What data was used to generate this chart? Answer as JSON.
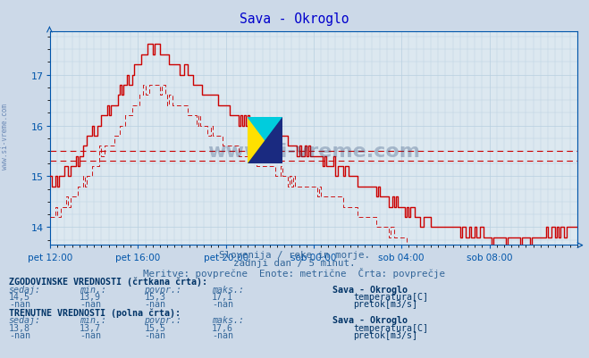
{
  "title": "Sava - Okroglo",
  "bg_color": "#ccd9e8",
  "plot_bg_color": "#dce8f0",
  "grid_color": "#b8cfe0",
  "title_color": "#0000cc",
  "axis_label_color": "#0055aa",
  "text_color": "#336699",
  "bold_text_color": "#003366",
  "line_color": "#cc0000",
  "hline_val1": 15.3,
  "hline_val2": 15.5,
  "ylim": [
    13.65,
    17.85
  ],
  "yticks": [
    14,
    15,
    16,
    17
  ],
  "xtick_labels": [
    "pet 12:00",
    "pet 16:00",
    "pet 20:00",
    "sob 00:00",
    "sob 04:00",
    "sob 08:00"
  ],
  "xtick_positions": [
    0,
    48,
    96,
    144,
    192,
    240
  ],
  "total_points": 289,
  "subtitle1": "Slovenija / reke in morje.",
  "subtitle2": "zadnji dan / 5 minut.",
  "subtitle3": "Meritve: povprečne  Enote: metrične  Črta: povprečje",
  "hist_sedaj": "14,5",
  "hist_min": "13,9",
  "hist_povpr": "15,3",
  "hist_maks": "17,1",
  "curr_sedaj": "13,8",
  "curr_min": "13,7",
  "curr_povpr": "15,5",
  "curr_maks": "17,6",
  "watermark_text": "www.si-vreme.com",
  "watermark_color": "#1a3a6a",
  "watermark_alpha": 0.28,
  "side_text": "www.si-vreme.com"
}
